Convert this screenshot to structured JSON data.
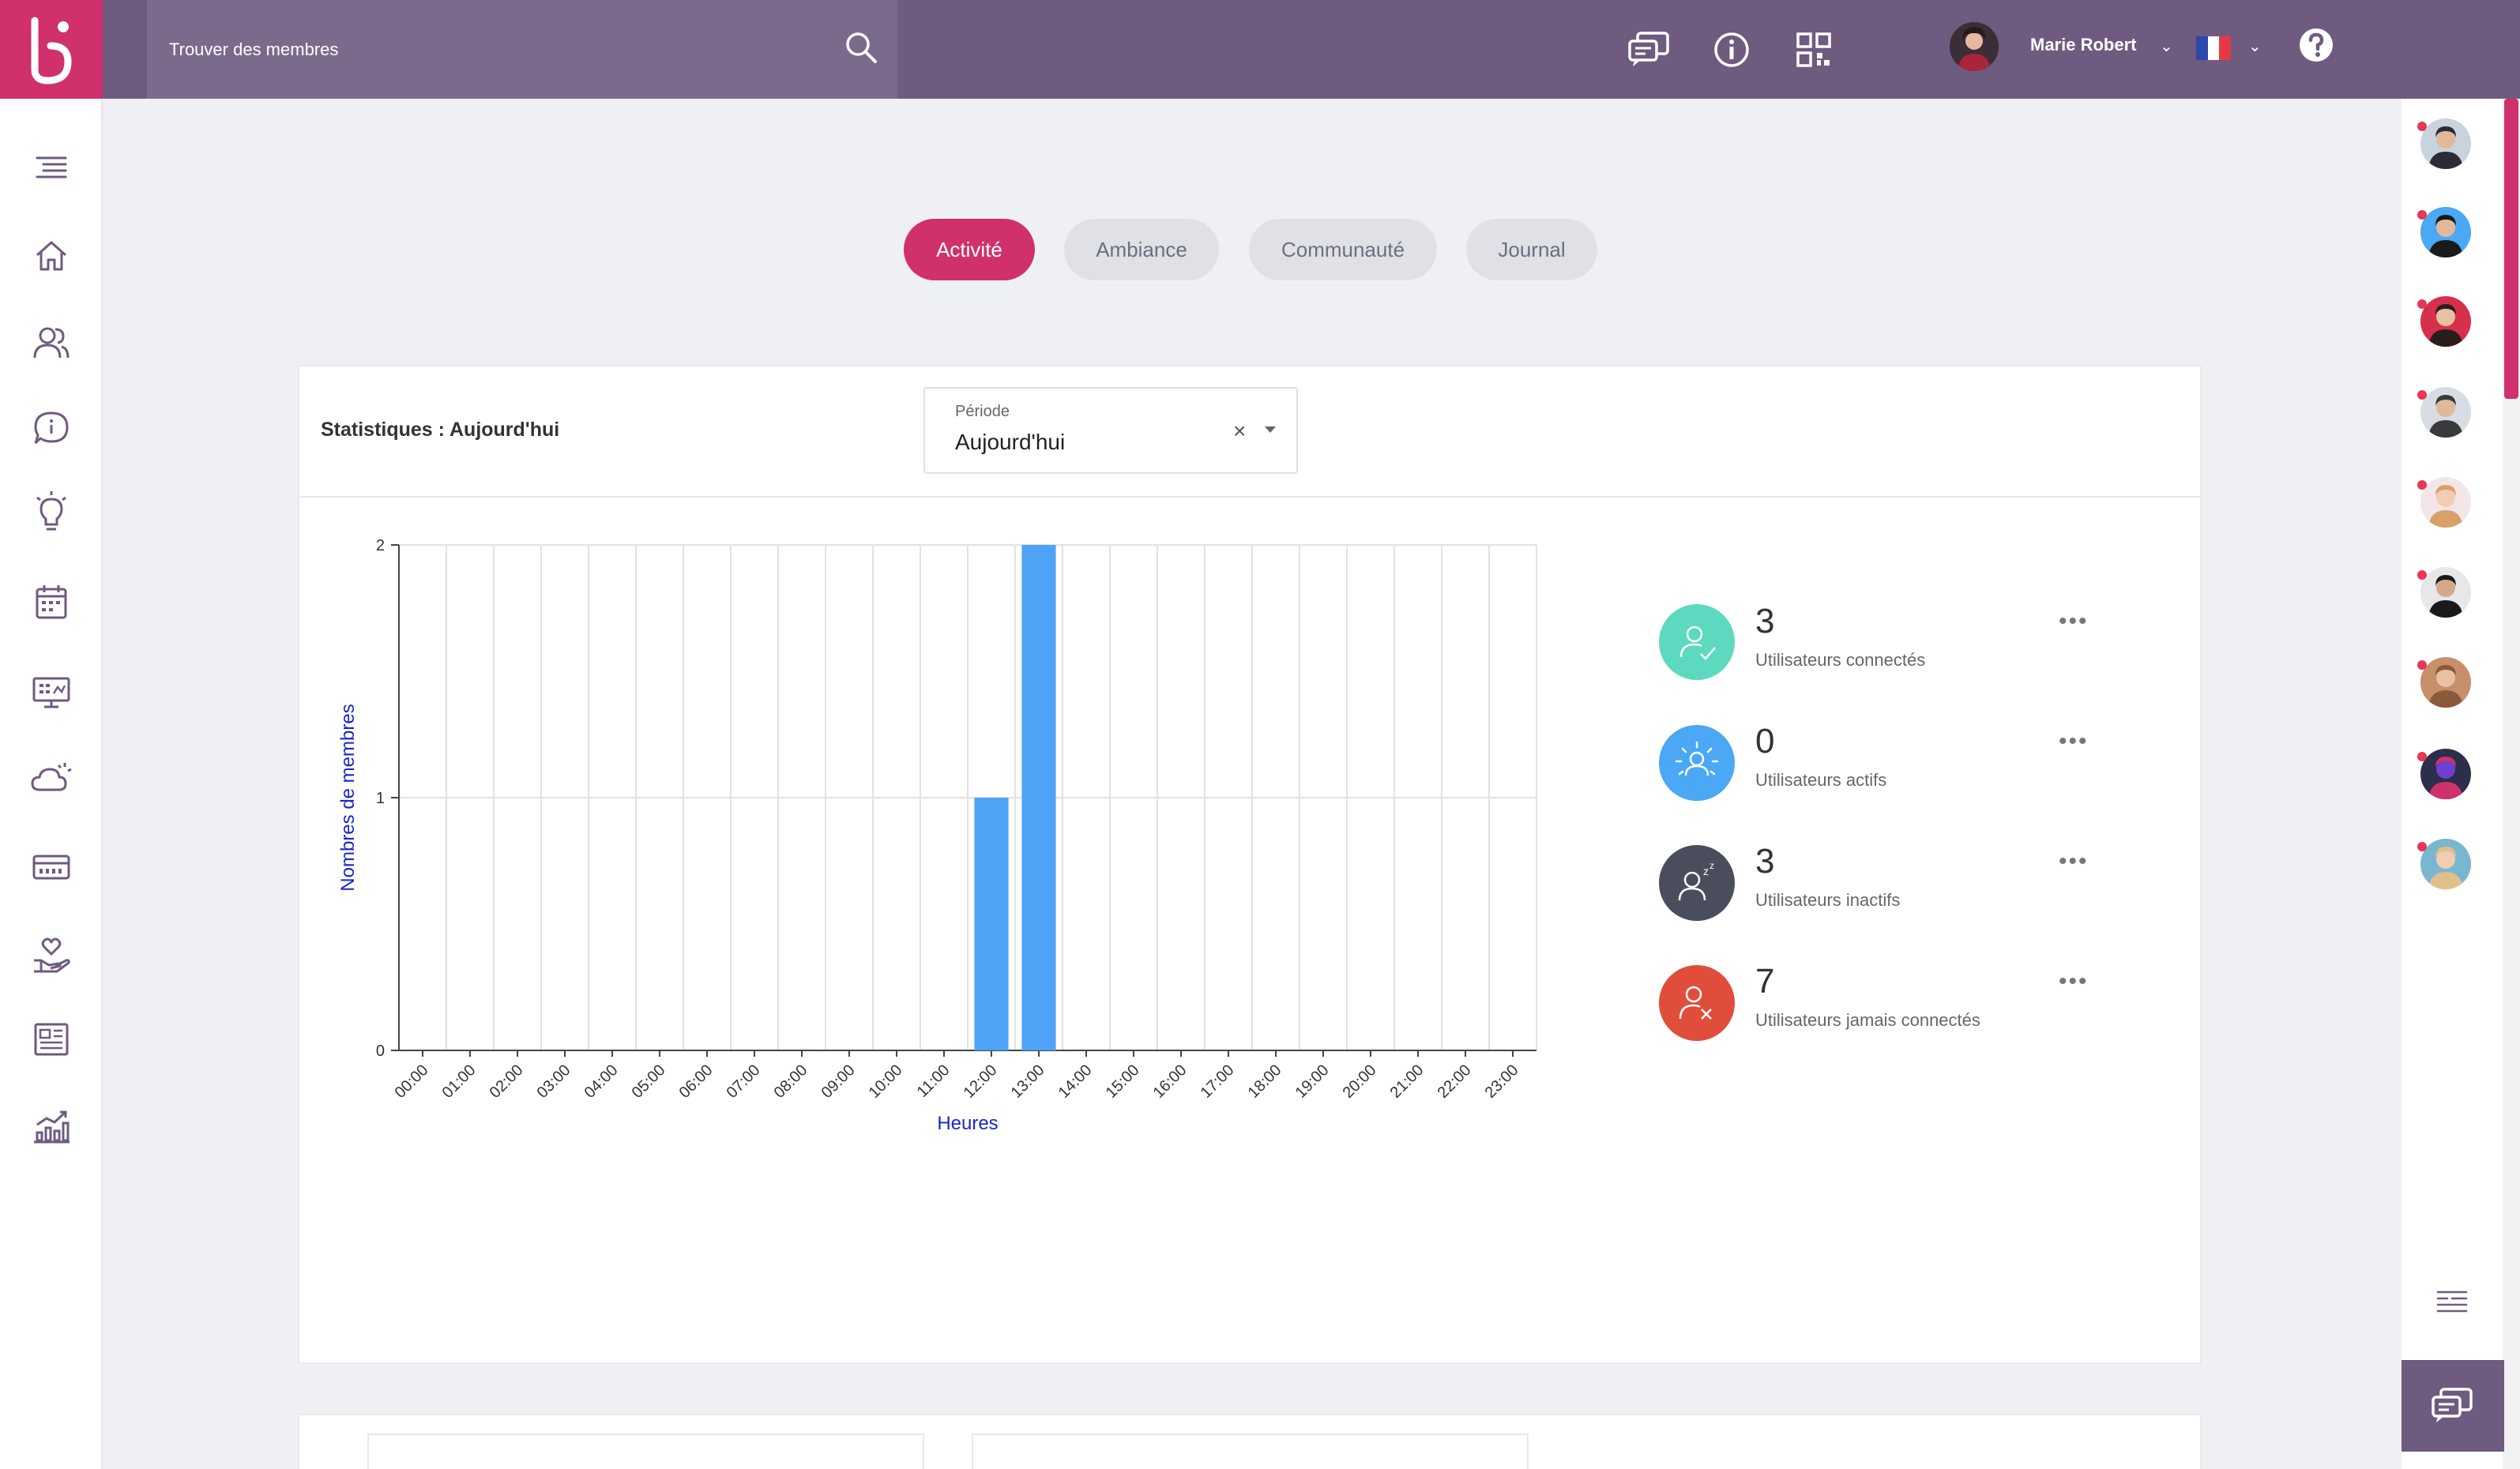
{
  "header": {
    "search_placeholder": "Trouver des membres",
    "user_name": "Marie Robert"
  },
  "tabs": [
    {
      "label": "Activité",
      "active": true
    },
    {
      "label": "Ambiance",
      "active": false
    },
    {
      "label": "Communauté",
      "active": false
    },
    {
      "label": "Journal",
      "active": false
    }
  ],
  "card": {
    "title": "Statistiques : Aujourd'hui",
    "period_label": "Période",
    "period_value": "Aujourd'hui",
    "clear_glyph": "×"
  },
  "stats": [
    {
      "value": "3",
      "label": "Utilisateurs connectés",
      "color": "#5dd9bf",
      "icon": "user-check-icon"
    },
    {
      "value": "0",
      "label": "Utilisateurs actifs",
      "color": "#4aa8f5",
      "icon": "user-active-icon"
    },
    {
      "value": "3",
      "label": "Utilisateurs inactifs",
      "color": "#4a4e5c",
      "icon": "user-sleep-icon"
    },
    {
      "value": "7",
      "label": "Utilisateurs jamais connectés",
      "color": "#e04e3b",
      "icon": "user-x-icon"
    }
  ],
  "more_glyph": "•••",
  "chart_data": {
    "type": "bar",
    "xlabel": "Heures",
    "ylabel": "Nombres de membres",
    "ylim": [
      0,
      2
    ],
    "yticks": [
      "0",
      "1",
      "2"
    ],
    "categories": [
      "00:00",
      "01:00",
      "02:00",
      "03:00",
      "04:00",
      "05:00",
      "06:00",
      "07:00",
      "08:00",
      "09:00",
      "10:00",
      "11:00",
      "12:00",
      "13:00",
      "14:00",
      "15:00",
      "16:00",
      "17:00",
      "18:00",
      "19:00",
      "20:00",
      "21:00",
      "22:00",
      "23:00"
    ],
    "values": [
      0,
      0,
      0,
      0,
      0,
      0,
      0,
      0,
      0,
      0,
      0,
      0,
      1,
      2,
      0,
      0,
      0,
      0,
      0,
      0,
      0,
      0,
      0,
      0
    ],
    "bar_color": "#4fa3f7",
    "grid": true
  }
}
